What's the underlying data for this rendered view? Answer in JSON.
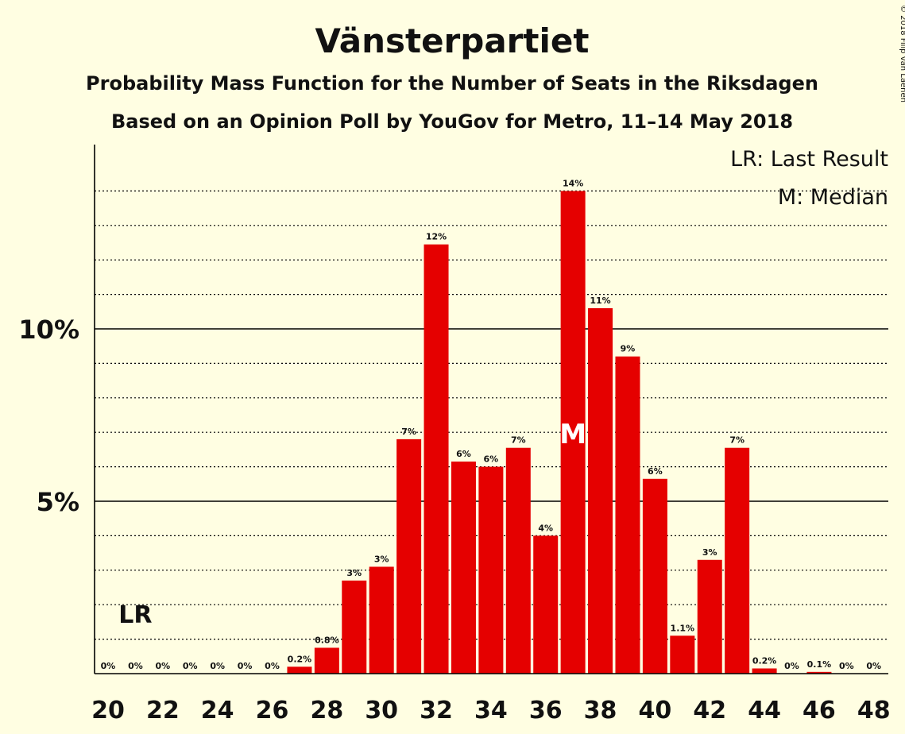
{
  "chart_data": {
    "type": "bar",
    "title": "Vänsterpartiet",
    "subtitle1": "Probability Mass Function for the Number of Seats in the Riksdagen",
    "subtitle2": "Based on an Opinion Poll by YouGov for Metro, 11–14 May 2018",
    "copyright": "© 2018 Filip van Laenen",
    "legend": {
      "lr": "LR: Last Result",
      "median": "M: Median",
      "placement": "top-right"
    },
    "ylim": [
      0,
      15.3
    ],
    "yticks": [
      {
        "value": 5,
        "label": "5%"
      },
      {
        "value": 10,
        "label": "10%"
      }
    ],
    "xticks": [
      "20",
      "22",
      "24",
      "26",
      "28",
      "30",
      "32",
      "34",
      "36",
      "38",
      "40",
      "42",
      "44",
      "46",
      "48"
    ],
    "categories": [
      20,
      21,
      22,
      23,
      24,
      25,
      26,
      27,
      28,
      29,
      30,
      31,
      32,
      33,
      34,
      35,
      36,
      37,
      38,
      39,
      40,
      41,
      42,
      43,
      44,
      45,
      46,
      47,
      48
    ],
    "values": [
      0,
      0,
      0,
      0,
      0,
      0,
      0,
      0.2,
      0.75,
      2.7,
      3.1,
      6.8,
      12.45,
      6.15,
      6.0,
      6.55,
      4.0,
      14.0,
      10.6,
      9.2,
      5.65,
      1.1,
      3.3,
      6.55,
      0.15,
      0,
      0.05,
      0,
      0
    ],
    "labels": [
      "0%",
      "0%",
      "0%",
      "0%",
      "0%",
      "0%",
      "0%",
      "0.2%",
      "0.8%",
      "3%",
      "3%",
      "7%",
      "12%",
      "6%",
      "6%",
      "7%",
      "4%",
      "14%",
      "11%",
      "9%",
      "6%",
      "1.1%",
      "3%",
      "7%",
      "0.2%",
      "0%",
      "0.1%",
      "0%",
      "0%"
    ],
    "last_result": {
      "seat": 21,
      "label": "LR"
    },
    "median": {
      "seat": 37,
      "label": "M"
    },
    "bar_color": "#E50000"
  }
}
